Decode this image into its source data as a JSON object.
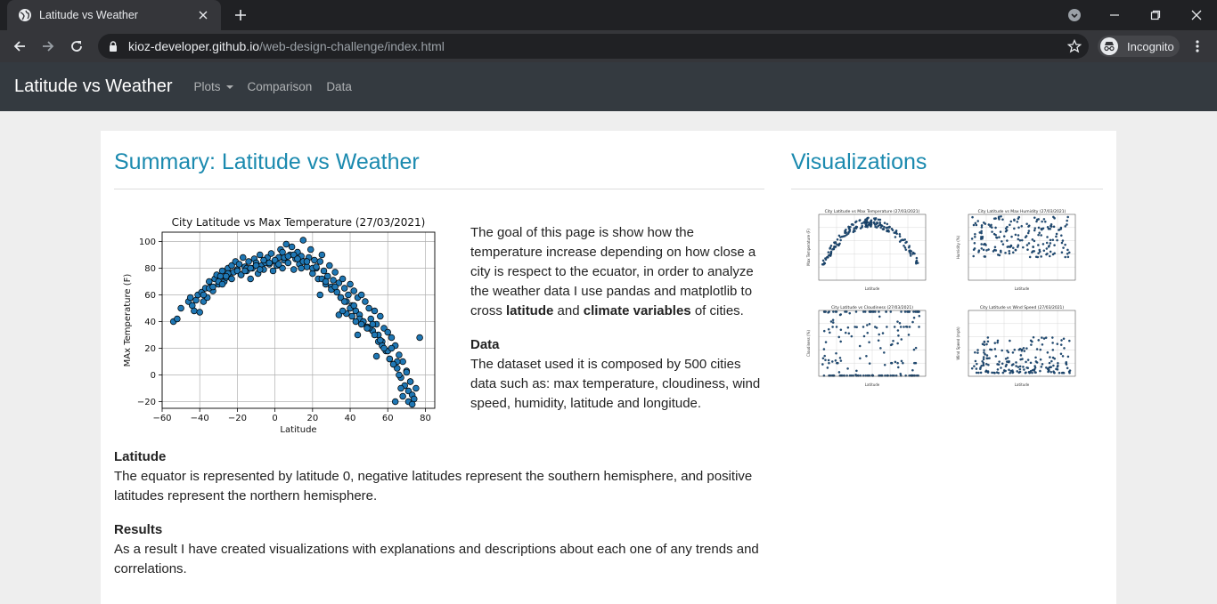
{
  "browser": {
    "tab_title": "Latitude vs Weather",
    "url_host": "kioz-developer.github.io",
    "url_path": "/web-design-challenge/index.html",
    "profile_label": "Incognito"
  },
  "navbar": {
    "brand": "Latitude vs Weather",
    "links": [
      "Plots",
      "Comparison",
      "Data"
    ]
  },
  "summary": {
    "title": "Summary: Latitude vs Weather",
    "intro_parts": {
      "a": "The goal of this page is show how the temperature increase depending on how close a city is respect to the ecuator, in order to analyze the weather data I use pandas and matplotlib to cross ",
      "b": "latitude",
      "c": " and ",
      "d": "climate variables",
      "e": " of cities."
    },
    "data_heading": "Data",
    "data_text": "The dataset used it is composed by 500 cities data such as: max temperature, cloudiness, wind speed, humidity, latitude and longitude.",
    "latitude_heading": "Latitude",
    "latitude_text": "The equator is represented by latitude 0, negative latitudes represent the southern hemisphere, and positive latitudes represent the northern hemisphere.",
    "results_heading": "Results",
    "results_text": "As a result I have created visualizations with explanations and descriptions about each one of any trends and correlations."
  },
  "visualizations": {
    "title": "Visualizations",
    "thumbnails": [
      {
        "title": "City Latitude vs Max Temperature (27/03/2021)",
        "ylabel": "Max Temperature (F)",
        "xlabel": "Latitude",
        "kind": "temp"
      },
      {
        "title": "City Latitude vs Max Humidity (27/03/2021)",
        "ylabel": "Humidity (%)",
        "xlabel": "Latitude",
        "kind": "humidity"
      },
      {
        "title": "City Latitude vs Cloudiness (27/03/2021)",
        "ylabel": "Cloudiness (%)",
        "xlabel": "Latitude",
        "kind": "cloud"
      },
      {
        "title": "City Latitude vs Wind Speed (27/03/2021)",
        "ylabel": "Wind Speed (mph)",
        "xlabel": "Latitude",
        "kind": "wind"
      }
    ]
  },
  "chart_data": {
    "type": "scatter",
    "title": "City Latitude vs Max Temperature (27/03/2021)",
    "xlabel": "Latitude",
    "ylabel": "MAx Temperature (F)",
    "xlim": [
      -60,
      85
    ],
    "ylim": [
      -25,
      107
    ],
    "xticks": [
      -60,
      -40,
      -20,
      0,
      20,
      40,
      60,
      80
    ],
    "yticks": [
      -20,
      0,
      20,
      40,
      60,
      80,
      100
    ],
    "grid": true,
    "marker_color": "#1f77b4",
    "series": [
      {
        "x": [
          -54,
          -52,
          -50,
          -46,
          -45,
          -44,
          -43,
          -42,
          -41,
          -40,
          -39,
          -38,
          -37,
          -36,
          -35,
          -34,
          -33,
          -32,
          -31,
          -30,
          -29,
          -28,
          -27,
          -26,
          -25,
          -24,
          -23,
          -22,
          -21,
          -20,
          -19,
          -18,
          -17,
          -16,
          -15,
          -14,
          -13,
          -12,
          -11,
          -10,
          -9,
          -8,
          -7,
          -6,
          -5,
          -4,
          -3,
          -2,
          -1,
          0,
          1,
          2,
          3,
          4,
          5,
          6,
          7,
          8,
          9,
          10,
          11,
          12,
          13,
          14,
          15,
          16,
          17,
          18,
          19,
          20,
          21,
          22,
          23,
          24,
          25,
          26,
          27,
          28,
          29,
          30,
          31,
          32,
          33,
          34,
          35,
          36,
          37,
          38,
          39,
          40,
          41,
          42,
          43,
          44,
          45,
          46,
          47,
          48,
          49,
          50,
          51,
          52,
          53,
          54,
          55,
          56,
          57,
          58,
          59,
          60,
          61,
          62,
          63,
          64,
          65,
          66,
          67,
          68,
          69,
          70,
          71,
          72,
          73,
          74,
          75,
          77,
          -35,
          -30,
          -25,
          -20,
          -15,
          -10,
          -5,
          0,
          5,
          10,
          15,
          20,
          25,
          30,
          35,
          40,
          45,
          50,
          55,
          60,
          65,
          70,
          -38,
          -28,
          -18,
          -8,
          2,
          12,
          22,
          32,
          42,
          52,
          62,
          72,
          -33,
          -23,
          -13,
          -3,
          7,
          17,
          27,
          37,
          47,
          57,
          67,
          -26,
          -16,
          -6,
          4,
          14,
          24,
          34,
          44,
          54,
          64,
          68,
          71,
          73,
          66,
          63,
          61,
          58,
          56,
          53,
          49,
          46,
          43,
          41,
          38,
          36
        ],
        "y": [
          40,
          42,
          50,
          55,
          58,
          52,
          48,
          56,
          60,
          47,
          62,
          55,
          65,
          58,
          70,
          66,
          63,
          72,
          75,
          68,
          74,
          78,
          70,
          73,
          80,
          76,
          82,
          77,
          85,
          79,
          83,
          75,
          88,
          81,
          78,
          85,
          72,
          80,
          87,
          84,
          76,
          90,
          82,
          79,
          86,
          88,
          83,
          91,
          78,
          85,
          82,
          88,
          94,
          80,
          86,
          98,
          84,
          90,
          96,
          79,
          87,
          92,
          83,
          89,
          101,
          85,
          81,
          88,
          94,
          76,
          86,
          80,
          72,
          85,
          90,
          78,
          68,
          74,
          82,
          66,
          71,
          77,
          62,
          69,
          58,
          72,
          65,
          55,
          60,
          68,
          52,
          63,
          48,
          58,
          45,
          60,
          40,
          55,
          36,
          50,
          42,
          33,
          48,
          38,
          30,
          44,
          25,
          35,
          18,
          32,
          12,
          28,
          8,
          22,
          5,
          15,
          -2,
          10,
          -8,
          3,
          -12,
          -5,
          -15,
          -18,
          -10,
          28,
          65,
          70,
          76,
          78,
          80,
          82,
          84,
          86,
          88,
          90,
          85,
          80,
          72,
          64,
          58,
          50,
          42,
          35,
          25,
          18,
          10,
          2,
          60,
          68,
          75,
          79,
          83,
          87,
          81,
          66,
          52,
          38,
          20,
          -5,
          66,
          72,
          80,
          84,
          89,
          85,
          70,
          55,
          40,
          22,
          -10,
          74,
          78,
          86,
          92,
          80,
          60,
          45,
          30,
          14,
          -20,
          -16,
          -20,
          -22,
          0,
          8,
          12,
          20,
          26,
          30,
          35,
          38,
          40,
          44,
          46,
          48
        ]
      }
    ]
  }
}
